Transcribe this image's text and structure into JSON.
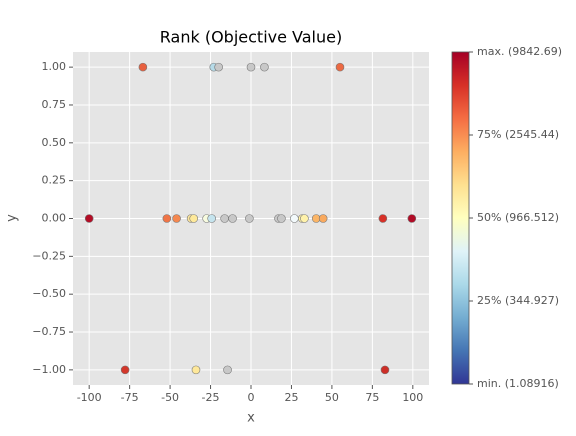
{
  "chart_data": {
    "type": "scatter",
    "title": "Rank (Objective Value)",
    "x_label": "x",
    "y_label": "y",
    "x": [
      -66.8,
      -23,
      -20,
      0,
      8.3,
      55,
      -100,
      -52,
      -46,
      -37,
      -35.4,
      -27.4,
      -24.3,
      -16.3,
      -11.4,
      -1,
      17,
      18.8,
      26.8,
      31.7,
      33,
      40.3,
      44.6,
      81.5,
      99.4,
      -77.8,
      -34,
      -14.5,
      82.8
    ],
    "values": [
      1,
      1,
      1,
      1,
      1,
      1,
      0,
      0,
      0,
      0,
      0,
      0,
      0,
      0,
      0,
      0,
      0,
      0,
      0,
      0,
      0,
      0,
      0,
      0,
      0,
      -1,
      -1,
      -1,
      -1
    ],
    "colors": [
      "#e8603f",
      "#b6dbe8",
      "#c8c8c8",
      "#c8c8c8",
      "#c8c8c8",
      "#ec6a43",
      "#b30d26",
      "#ef7446",
      "#f4874f",
      "#fde69c",
      "#fee99a",
      "#f7fbdf",
      "#c5e4ee",
      "#c8c8c8",
      "#c8c8c8",
      "#c8c8c8",
      "#c8c8c8",
      "#c8c8c8",
      "#f3fafc",
      "#fff0a6",
      "#fff2aa",
      "#fbb566",
      "#f9a95e",
      "#d73027",
      "#b10b26",
      "#d3372b",
      "#fee89a",
      "#c8c8c8",
      "#cd2e27"
    ],
    "xlim": [
      -110,
      110
    ],
    "ylim": [
      -1.1,
      1.1
    ],
    "xticks": [
      -100,
      -75,
      -50,
      -25,
      0,
      25,
      50,
      75,
      100
    ],
    "yticks": [
      {
        "value": 1,
        "label": "1.00"
      },
      {
        "value": 0.75,
        "label": "0.75"
      },
      {
        "value": 0.5,
        "label": "0.50"
      },
      {
        "value": 0.25,
        "label": "0.25"
      },
      {
        "value": 0,
        "label": "0.00"
      },
      {
        "value": -0.25,
        "label": "−0.25"
      },
      {
        "value": -0.5,
        "label": "−0.50"
      },
      {
        "value": -0.75,
        "label": "−0.75"
      },
      {
        "value": -1,
        "label": "−1.00"
      }
    ],
    "grid": true,
    "colorbar": {
      "lim": [
        0,
        1
      ],
      "gradient": [
        "#313695",
        "#4575b4",
        "#74add1",
        "#abd9e9",
        "#e0f3f8",
        "#ffffbf",
        "#fee090",
        "#fdae61",
        "#f46d43",
        "#d73027",
        "#a50026"
      ],
      "ticks": [
        {
          "value": 1,
          "label": "max. (9842.69)"
        },
        {
          "value": 0.75,
          "label": "75% (2545.44)"
        },
        {
          "value": 0.5,
          "label": "50% (966.512)"
        },
        {
          "value": 0.25,
          "label": "25% (344.927)"
        },
        {
          "value": 0,
          "label": "min. (1.08916)"
        }
      ]
    }
  }
}
